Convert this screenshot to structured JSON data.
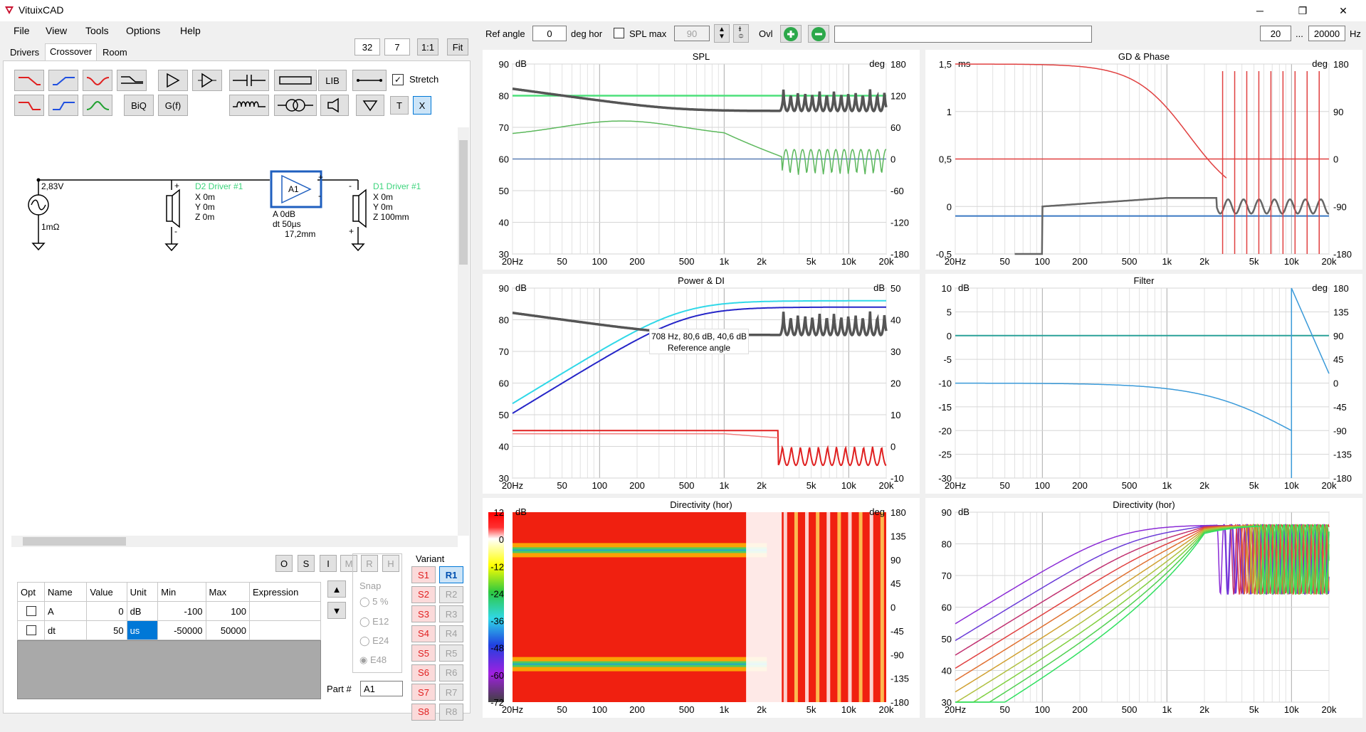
{
  "app": {
    "title": "VituixCAD"
  },
  "window_buttons": {
    "minimize": "─",
    "restore": "❐",
    "close": "✕"
  },
  "menu": [
    "File",
    "View",
    "Tools",
    "Options",
    "Help"
  ],
  "zoom_controls": {
    "v1": "32",
    "v2": "7",
    "one_to_one": "1:1",
    "fit": "Fit"
  },
  "tabs": [
    "Drivers",
    "Crossover",
    "Room"
  ],
  "components": {
    "lib": "LIB",
    "biq": "BiQ",
    "gf": "G(f)",
    "t": "T",
    "x": "X",
    "stretch": "Stretch"
  },
  "schematic": {
    "source_voltage": "2,83V",
    "source_impedance": "1mΩ",
    "d2_label": "D2 Driver #1",
    "d2_x": "X 0m",
    "d2_y": "Y 0m",
    "d2_z": "Z 0m",
    "amp_label": "A1",
    "amp_a": "A  0dB",
    "amp_dt": "dt 50µs",
    "amp_dist": "17,2mm",
    "d1_label": "D1 Driver #1",
    "d1_x": "X 0m",
    "d1_y": "Y 0m",
    "d1_z": "Z 100mm",
    "colors": {
      "driver_label": "#3cd47c",
      "amp_border": "#1f5fbf"
    }
  },
  "op_buttons": [
    "O",
    "S",
    "I",
    "M",
    "R",
    "H"
  ],
  "param_table": {
    "headers": [
      "Opt",
      "Name",
      "Value",
      "Unit",
      "Min",
      "Max",
      "Expression"
    ],
    "rows": [
      {
        "name": "A",
        "value": "0",
        "unit": "dB",
        "min": "-100",
        "max": "100",
        "expr": ""
      },
      {
        "name": "dt",
        "value": "50",
        "unit": "us",
        "min": "-50000",
        "max": "50000",
        "expr": ""
      }
    ]
  },
  "snap": {
    "label": "Snap",
    "options": [
      "5 %",
      "E12",
      "E24",
      "E48"
    ],
    "selected": "E48"
  },
  "variant": {
    "label": "Variant",
    "s": [
      "S1",
      "S2",
      "S3",
      "S4",
      "S5",
      "S6",
      "S7",
      "S8"
    ],
    "r": [
      "R1",
      "R2",
      "R3",
      "R4",
      "R5",
      "R6",
      "R7",
      "R8"
    ],
    "active": "R1"
  },
  "part": {
    "label": "Part #",
    "value": "A1"
  },
  "toolbar_right": {
    "ref_angle_label": "Ref angle",
    "ref_angle_value": "0",
    "deg_hor": "deg hor",
    "spl_max_label": "SPL max",
    "spl_max_value": "90",
    "ovl": "Ovl",
    "f_min": "20",
    "ellipsis": "...",
    "f_max": "20000",
    "hz": "Hz"
  },
  "x_ticks": [
    "20Hz",
    "50",
    "100",
    "200",
    "500",
    "1k",
    "2k",
    "5k",
    "10k",
    "20k"
  ],
  "plots": {
    "spl": {
      "title": "SPL",
      "unit_left": "dB",
      "unit_right": "deg",
      "left": [
        "90",
        "80",
        "70",
        "60",
        "50",
        "40",
        "30"
      ],
      "right": [
        "180",
        "120",
        "60",
        "0",
        "-60",
        "-120",
        "-180"
      ]
    },
    "gd": {
      "title": "GD & Phase",
      "unit_left": "ms",
      "unit_right": "deg",
      "left": [
        "1,5",
        "1",
        "0,5",
        "0",
        "-0,5"
      ],
      "right": [
        "180",
        "90",
        "0",
        "-90",
        "-180"
      ]
    },
    "power": {
      "title": "Power & DI",
      "unit_left": "dB",
      "unit_right": "dB",
      "left": [
        "90",
        "80",
        "70",
        "60",
        "50",
        "40",
        "30"
      ],
      "right": [
        "50",
        "40",
        "30",
        "20",
        "10",
        "0",
        "-10"
      ],
      "tooltip1": "708 Hz, 80,6 dB, 40,6 dB",
      "tooltip2": "Reference angle"
    },
    "filter": {
      "title": "Filter",
      "unit_left": "dB",
      "unit_right": "deg",
      "left": [
        "10",
        "5",
        "0",
        "-5",
        "-10",
        "-15",
        "-20",
        "-25",
        "-30"
      ],
      "right": [
        "180",
        "135",
        "90",
        "45",
        "0",
        "-45",
        "-90",
        "-135",
        "-180"
      ]
    },
    "dir_map": {
      "title": "Directivity (hor)",
      "unit_left": "dB",
      "unit_right": "deg",
      "left": [
        "12",
        "0",
        "-12",
        "-24",
        "-36",
        "-48",
        "-60",
        "-72"
      ],
      "right": [
        "180",
        "135",
        "90",
        "45",
        "0",
        "-45",
        "-90",
        "-135",
        "-180"
      ]
    },
    "dir_curves": {
      "title": "Directivity (hor)",
      "unit_left": "dB",
      "left": [
        "90",
        "80",
        "70",
        "60",
        "50",
        "40",
        "30"
      ]
    }
  }
}
